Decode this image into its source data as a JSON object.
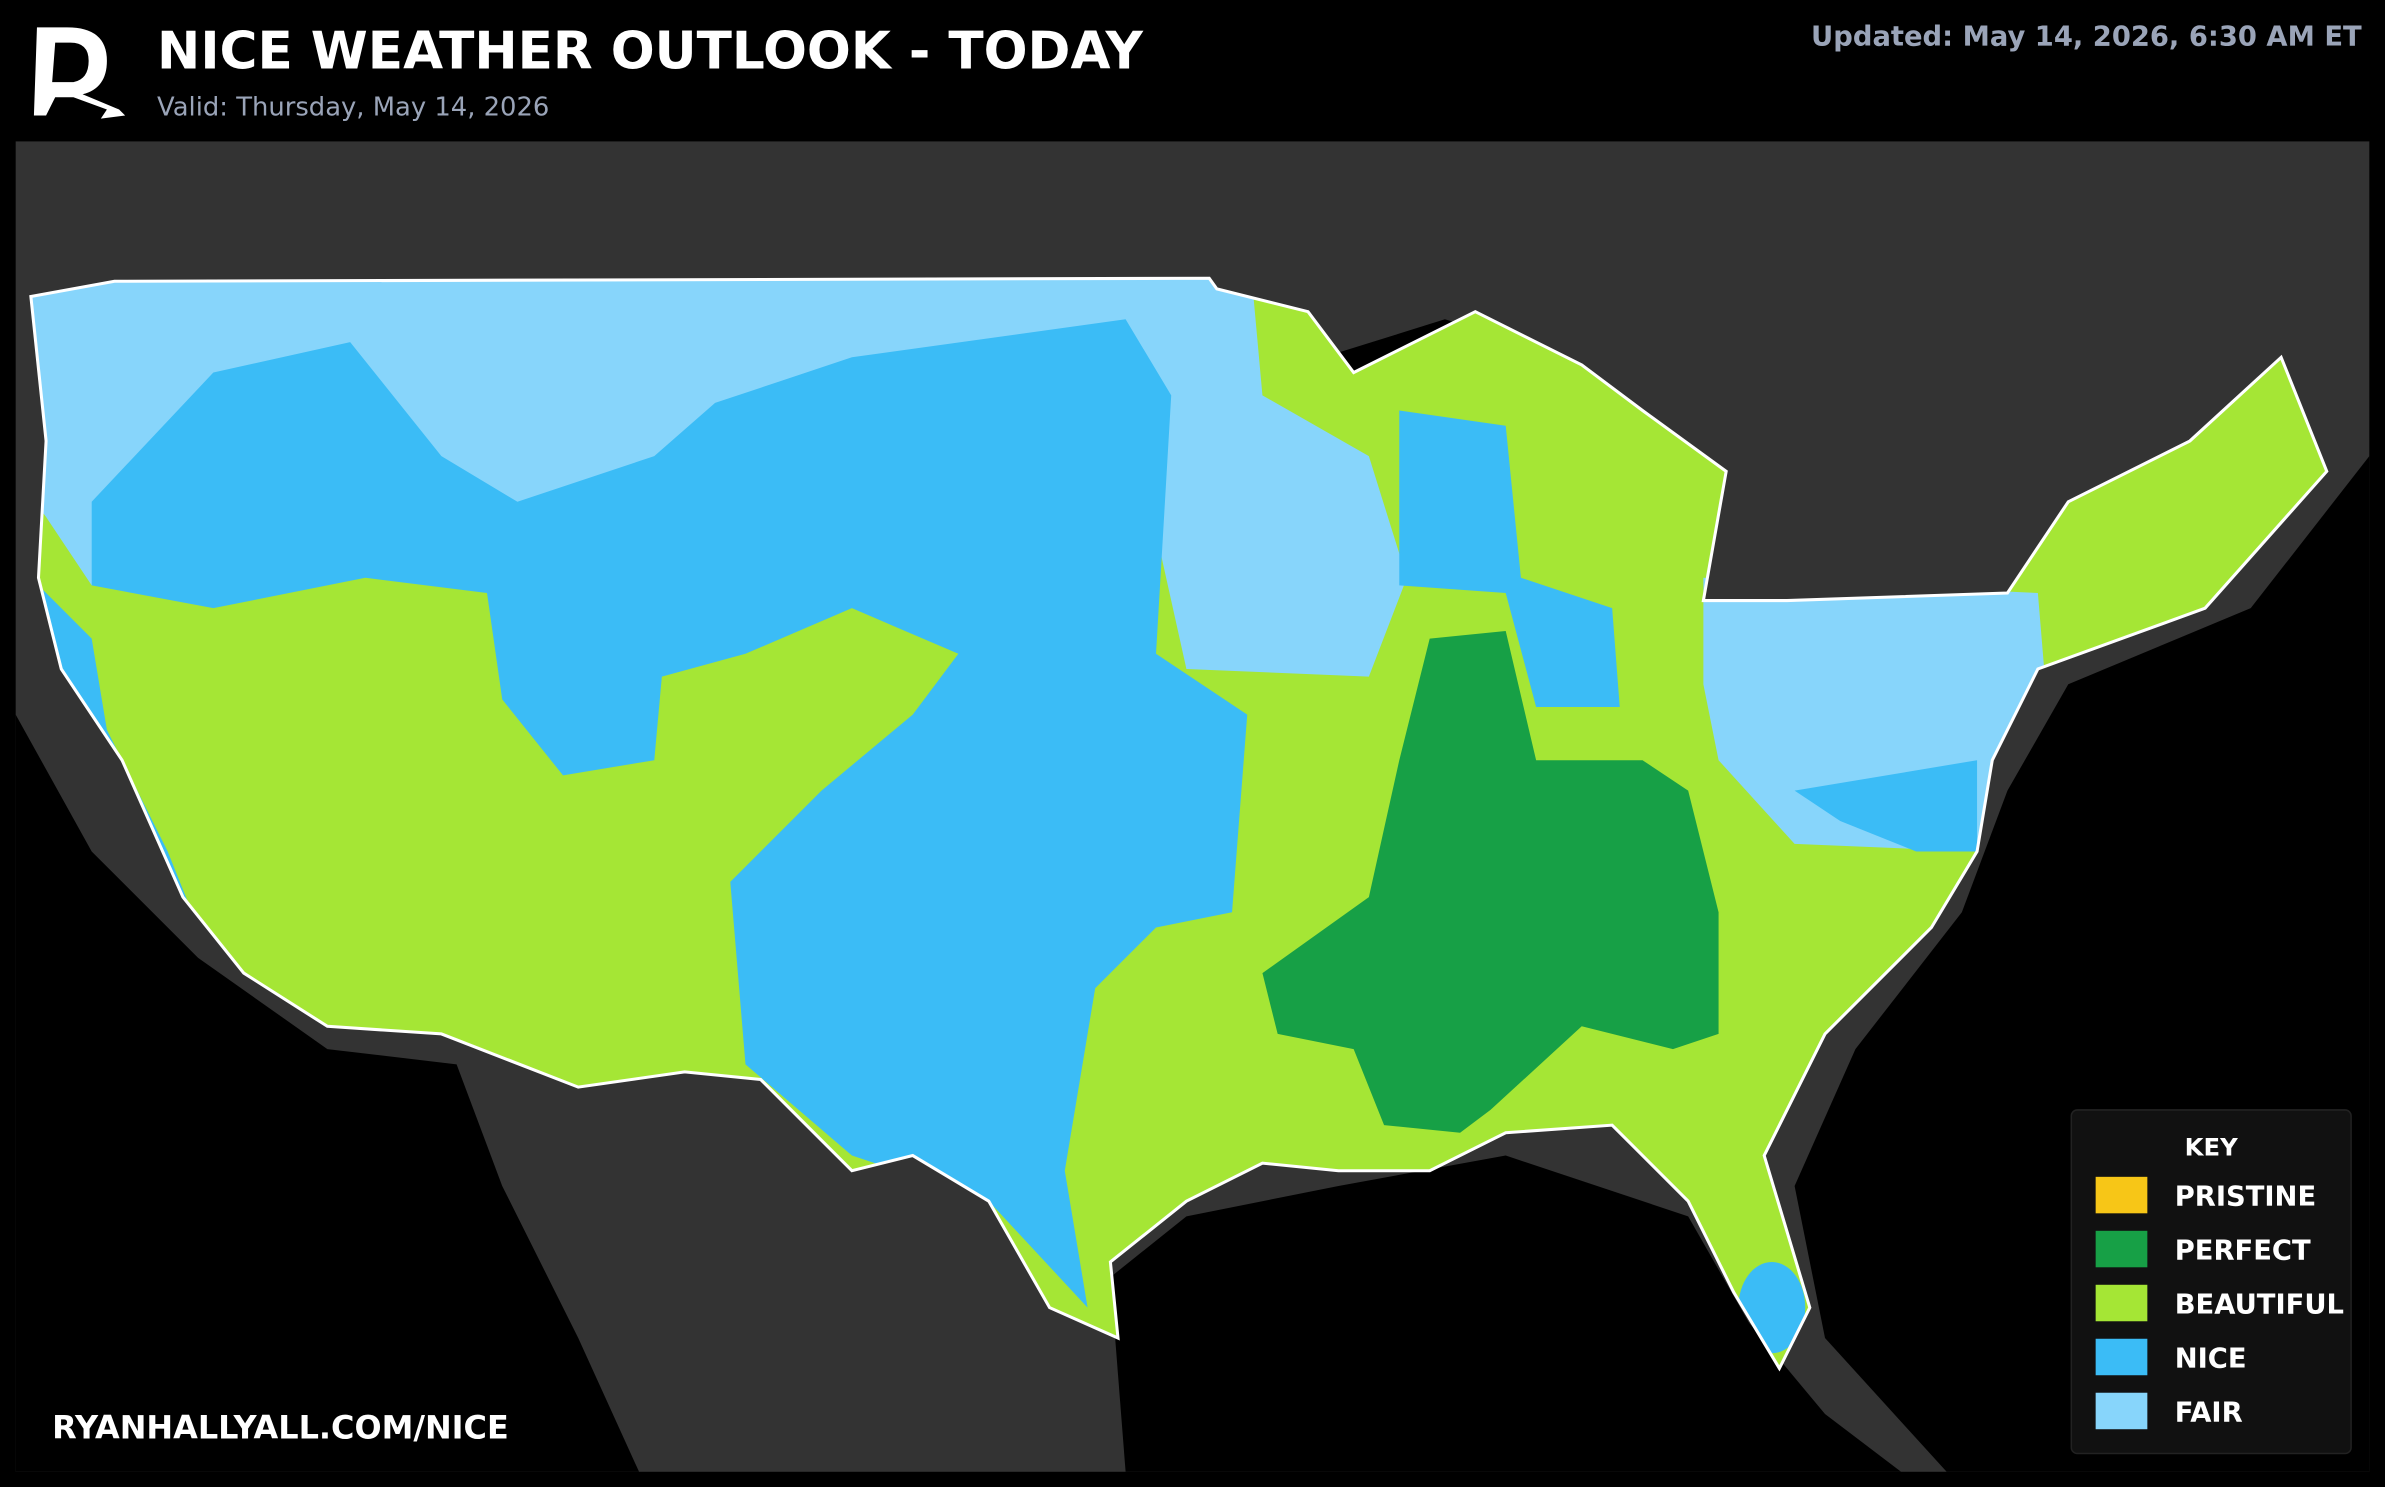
{
  "header": {
    "title": "NICE WEATHER OUTLOOK - TODAY",
    "subtitle": "Valid: Thursday, May 14, 2026",
    "updated": "Updated: May 14, 2026, 6:30 AM ET"
  },
  "legend": {
    "title": "KEY",
    "items": [
      {
        "label": "PRISTINE",
        "color": "#f7c617"
      },
      {
        "label": "PERFECT",
        "color": "#17a046"
      },
      {
        "label": "BEAUTIFUL",
        "color": "#a5e635"
      },
      {
        "label": "NICE",
        "color": "#3bbcf6"
      },
      {
        "label": "FAIR",
        "color": "#87d5fb"
      }
    ]
  },
  "footer": {
    "url": "RYANHALLYALL.COM/NICE"
  }
}
